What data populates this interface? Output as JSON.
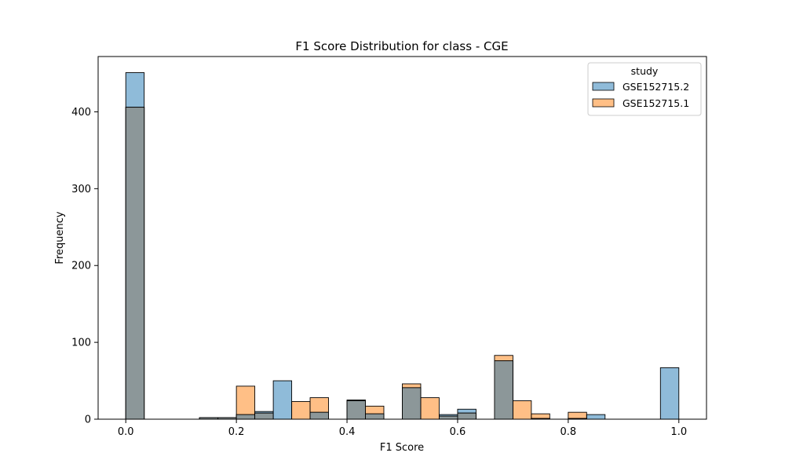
{
  "chart_data": {
    "type": "bar",
    "title": "F1 Score Distribution for class - CGE",
    "xlabel": "F1 Score",
    "ylabel": "Frequency",
    "xlim": [
      -0.05,
      1.05
    ],
    "ylim": [
      0,
      472
    ],
    "xticks": [
      "0.0",
      "0.2",
      "0.4",
      "0.6",
      "0.8",
      "1.0"
    ],
    "yticks": [
      "0",
      "100",
      "200",
      "300",
      "400"
    ],
    "bin_width": 0.0333,
    "legend": {
      "title": "study",
      "placement": "top-right"
    },
    "colors": {
      "series_a": "#1f77b4",
      "series_b": "#ff7f0e",
      "overlap": "#8c9799"
    },
    "series": [
      {
        "name": "GSE152715.2",
        "bins": [
          {
            "x0": 0.0,
            "value": 451
          },
          {
            "x0": 0.1333,
            "value": 2
          },
          {
            "x0": 0.1667,
            "value": 2
          },
          {
            "x0": 0.2,
            "value": 6
          },
          {
            "x0": 0.2333,
            "value": 10
          },
          {
            "x0": 0.2667,
            "value": 50
          },
          {
            "x0": 0.3333,
            "value": 9
          },
          {
            "x0": 0.4,
            "value": 25
          },
          {
            "x0": 0.4333,
            "value": 7
          },
          {
            "x0": 0.5,
            "value": 41
          },
          {
            "x0": 0.5667,
            "value": 6
          },
          {
            "x0": 0.6,
            "value": 13
          },
          {
            "x0": 0.6667,
            "value": 76
          },
          {
            "x0": 0.7333,
            "value": 1
          },
          {
            "x0": 0.8,
            "value": 1
          },
          {
            "x0": 0.8333,
            "value": 6
          },
          {
            "x0": 0.9667,
            "value": 67
          }
        ]
      },
      {
        "name": "GSE152715.1",
        "bins": [
          {
            "x0": 0.0,
            "value": 406
          },
          {
            "x0": 0.1333,
            "value": 2
          },
          {
            "x0": 0.1667,
            "value": 2
          },
          {
            "x0": 0.2,
            "value": 43
          },
          {
            "x0": 0.2333,
            "value": 8
          },
          {
            "x0": 0.3,
            "value": 23
          },
          {
            "x0": 0.3333,
            "value": 28
          },
          {
            "x0": 0.4,
            "value": 24
          },
          {
            "x0": 0.4333,
            "value": 17
          },
          {
            "x0": 0.5,
            "value": 46
          },
          {
            "x0": 0.5333,
            "value": 28
          },
          {
            "x0": 0.5667,
            "value": 4
          },
          {
            "x0": 0.6,
            "value": 8
          },
          {
            "x0": 0.6667,
            "value": 83
          },
          {
            "x0": 0.7,
            "value": 24
          },
          {
            "x0": 0.7333,
            "value": 7
          },
          {
            "x0": 0.8,
            "value": 9
          }
        ]
      }
    ]
  }
}
